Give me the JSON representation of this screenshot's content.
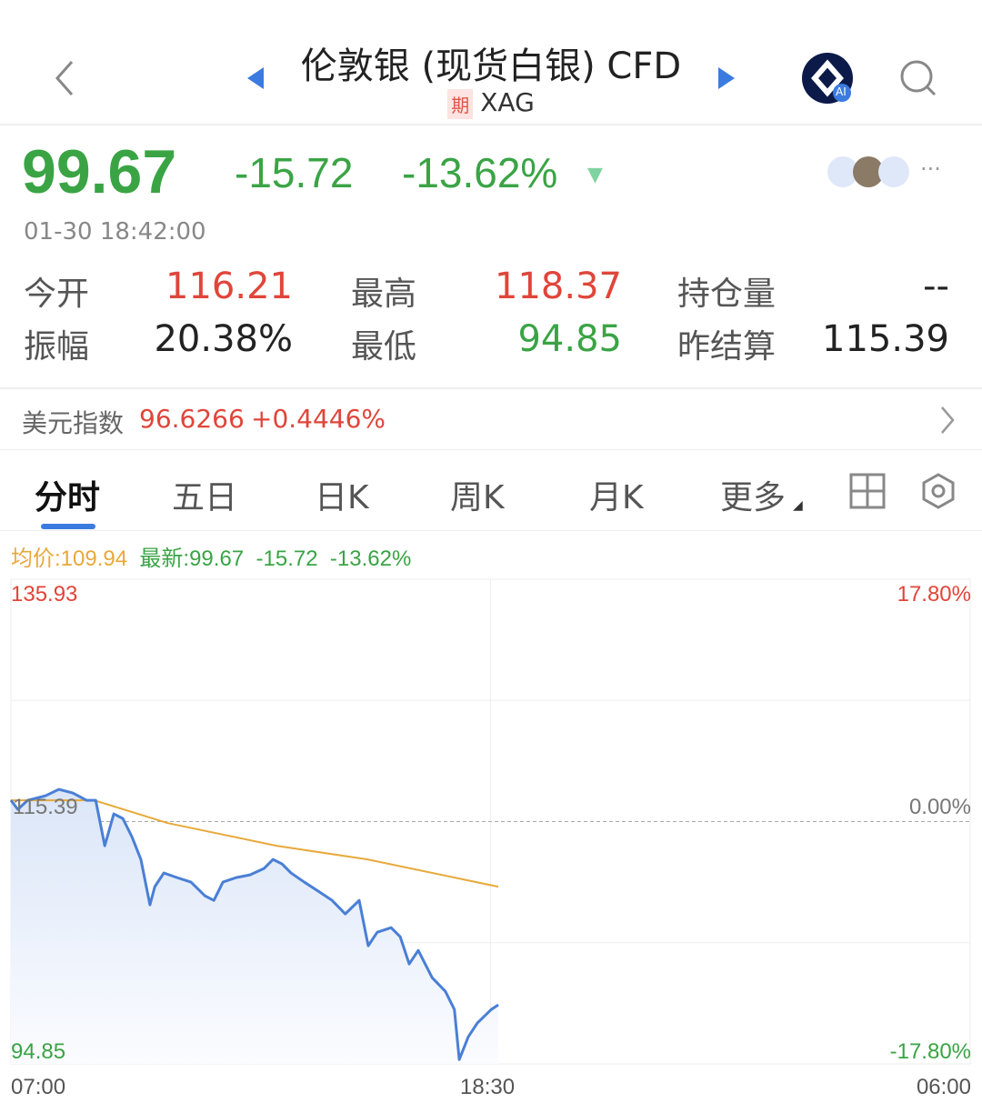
{
  "header": {
    "title": "伦敦银 (现货白银) CFD",
    "tag": "期",
    "symbol": "XAG",
    "ai_badge": "AI"
  },
  "quote": {
    "price": "99.67",
    "change": "-15.72",
    "change_pct": "-13.62%",
    "timestamp": "01-30 18:42:00"
  },
  "stats": [
    {
      "label": "今开",
      "value": "116.21",
      "color": "red"
    },
    {
      "label": "最高",
      "value": "118.37",
      "color": "red"
    },
    {
      "label": "持仓量",
      "value": "--",
      "color": "dark"
    },
    {
      "label": "振幅",
      "value": "20.38%",
      "color": "dark"
    },
    {
      "label": "最低",
      "value": "94.85",
      "color": "green"
    },
    {
      "label": "昨结算",
      "value": "115.39",
      "color": "dark"
    }
  ],
  "dollar_index": {
    "label": "美元指数",
    "value": "96.6266",
    "change": "+0.4446%"
  },
  "tabs": [
    {
      "label": "分时",
      "active": true
    },
    {
      "label": "五日"
    },
    {
      "label": "日K"
    },
    {
      "label": "周K"
    },
    {
      "label": "月K"
    },
    {
      "label": "更多"
    }
  ],
  "chart_legend": {
    "avg": "均价:109.94",
    "latest": "最新:99.67",
    "change": "-15.72",
    "change_pct": "-13.62%"
  },
  "colors": {
    "up": "#e0453a",
    "down": "#3aa445",
    "price_line": "#4a7fd6",
    "avg_line": "#e8a93a",
    "accent": "#3b7be0"
  },
  "chart_data": {
    "type": "line",
    "ylim": [
      94.85,
      135.93
    ],
    "y_ticks_left": [
      "135.93",
      "115.39",
      "94.85"
    ],
    "y_ticks_right": [
      "17.80%",
      "0.00%",
      "-17.80%"
    ],
    "x_ticks": [
      "07:00",
      "18:30",
      "06:00"
    ],
    "reference_price": 115.39,
    "series": [
      {
        "key": "price",
        "x": [
          "07:00",
          "07:10",
          "07:24",
          "07:50",
          "08:09",
          "08:29",
          "08:49",
          "09:02",
          "09:15",
          "09:28",
          "09:41",
          "09:54",
          "10:07",
          "10:20",
          "10:27",
          "10:40",
          "10:59",
          "11:19",
          "11:39",
          "11:52",
          "12:05",
          "12:24",
          "12:44",
          "13:04",
          "13:17",
          "13:30",
          "13:43",
          "14:02",
          "14:22",
          "14:42",
          "15:01",
          "15:21",
          "15:34",
          "15:47",
          "16:07",
          "16:20",
          "16:33",
          "16:46",
          "17:06",
          "17:25",
          "17:38",
          "17:45",
          "17:58",
          "18:11",
          "18:31",
          "18:41"
        ],
        "values": [
          117.19,
          116.42,
          117.19,
          117.58,
          118.12,
          117.81,
          117.19,
          117.19,
          113.34,
          116.04,
          115.65,
          114.11,
          112.18,
          108.33,
          109.87,
          111.03,
          110.64,
          110.26,
          109.1,
          108.71,
          110.26,
          110.64,
          110.87,
          111.41,
          112.18,
          111.8,
          111.03,
          110.26,
          109.49,
          108.71,
          107.56,
          108.71,
          104.86,
          106.01,
          106.4,
          105.63,
          103.32,
          104.47,
          102.16,
          101.0,
          99.46,
          95.22,
          97.15,
          98.31,
          99.46,
          99.85
        ]
      },
      {
        "key": "avg",
        "x": [
          "07:00",
          "09:00",
          "10:45",
          "13:22",
          "15:33",
          "18:41"
        ],
        "values": [
          117.19,
          117.19,
          115.27,
          113.34,
          112.18,
          109.87
        ]
      }
    ]
  }
}
